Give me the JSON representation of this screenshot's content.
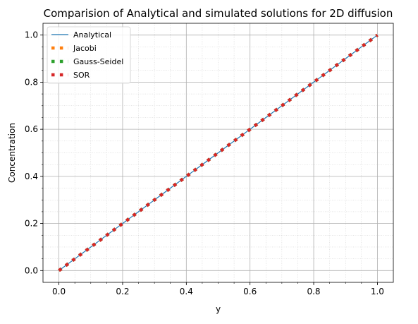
{
  "chart_data": {
    "type": "line",
    "title": "Comparision of Analytical and simulated solutions for 2D diffusion",
    "xlabel": "y",
    "ylabel": "Concentration",
    "xlim": [
      -0.05,
      1.05
    ],
    "ylim": [
      -0.05,
      1.05
    ],
    "xticks": [
      0.0,
      0.2,
      0.4,
      0.6,
      0.8,
      1.0
    ],
    "yticks": [
      0.0,
      0.2,
      0.4,
      0.6,
      0.8,
      1.0
    ],
    "xtick_labels": [
      "0.0",
      "0.2",
      "0.4",
      "0.6",
      "0.8",
      "1.0"
    ],
    "ytick_labels": [
      "0.0",
      "0.2",
      "0.4",
      "0.6",
      "0.8",
      "1.0"
    ],
    "grid": true,
    "legend_position": "top-left",
    "n_points": 40,
    "x": [
      0.0,
      0.0256,
      0.0513,
      0.0769,
      0.1026,
      0.1282,
      0.1538,
      0.1795,
      0.2051,
      0.2308,
      0.2564,
      0.2821,
      0.3077,
      0.3333,
      0.359,
      0.3846,
      0.4103,
      0.4359,
      0.4615,
      0.4872,
      0.5128,
      0.5385,
      0.5641,
      0.5897,
      0.6154,
      0.641,
      0.6667,
      0.6923,
      0.7179,
      0.7436,
      0.7692,
      0.7949,
      0.8205,
      0.8462,
      0.8718,
      0.8974,
      0.9231,
      0.9487,
      0.9744,
      1.0
    ],
    "series": [
      {
        "name": "Analytical",
        "style": "line",
        "color": "#1f77b4",
        "values": [
          0.0,
          0.0256,
          0.0513,
          0.0769,
          0.1026,
          0.1282,
          0.1538,
          0.1795,
          0.2051,
          0.2308,
          0.2564,
          0.2821,
          0.3077,
          0.3333,
          0.359,
          0.3846,
          0.4103,
          0.4359,
          0.4615,
          0.4872,
          0.5128,
          0.5385,
          0.5641,
          0.5897,
          0.6154,
          0.641,
          0.6667,
          0.6923,
          0.7179,
          0.7436,
          0.7692,
          0.7949,
          0.8205,
          0.8462,
          0.8718,
          0.8974,
          0.9231,
          0.9487,
          0.9744,
          1.0
        ]
      },
      {
        "name": "Jacobi",
        "style": "dotted",
        "color": "#ff7f0e",
        "values": [
          0.0,
          0.0256,
          0.0513,
          0.0769,
          0.1026,
          0.1282,
          0.1538,
          0.1795,
          0.2051,
          0.2308,
          0.2564,
          0.2821,
          0.3077,
          0.3333,
          0.359,
          0.3846,
          0.4103,
          0.4359,
          0.4615,
          0.4872,
          0.5128,
          0.5385,
          0.5641,
          0.5897,
          0.6154,
          0.641,
          0.6667,
          0.6923,
          0.7179,
          0.7436,
          0.7692,
          0.7949,
          0.8205,
          0.8462,
          0.8718,
          0.8974,
          0.9231,
          0.9487,
          0.9744,
          1.0
        ]
      },
      {
        "name": "Gauss-Seidel",
        "style": "dotted",
        "color": "#2ca02c",
        "values": [
          0.0,
          0.0256,
          0.0513,
          0.0769,
          0.1026,
          0.1282,
          0.1538,
          0.1795,
          0.2051,
          0.2308,
          0.2564,
          0.2821,
          0.3077,
          0.3333,
          0.359,
          0.3846,
          0.4103,
          0.4359,
          0.4615,
          0.4872,
          0.5128,
          0.5385,
          0.5641,
          0.5897,
          0.6154,
          0.641,
          0.6667,
          0.6923,
          0.7179,
          0.7436,
          0.7692,
          0.7949,
          0.8205,
          0.8462,
          0.8718,
          0.8974,
          0.9231,
          0.9487,
          0.9744,
          1.0
        ]
      },
      {
        "name": "SOR",
        "style": "dotted",
        "color": "#d62728",
        "values": [
          0.0,
          0.0256,
          0.0513,
          0.0769,
          0.1026,
          0.1282,
          0.1538,
          0.1795,
          0.2051,
          0.2308,
          0.2564,
          0.2821,
          0.3077,
          0.3333,
          0.359,
          0.3846,
          0.4103,
          0.4359,
          0.4615,
          0.4872,
          0.5128,
          0.5385,
          0.5641,
          0.5897,
          0.6154,
          0.641,
          0.6667,
          0.6923,
          0.7179,
          0.7436,
          0.7692,
          0.7949,
          0.8205,
          0.8462,
          0.8718,
          0.8974,
          0.9231,
          0.9487,
          0.9744,
          1.0
        ]
      }
    ]
  }
}
